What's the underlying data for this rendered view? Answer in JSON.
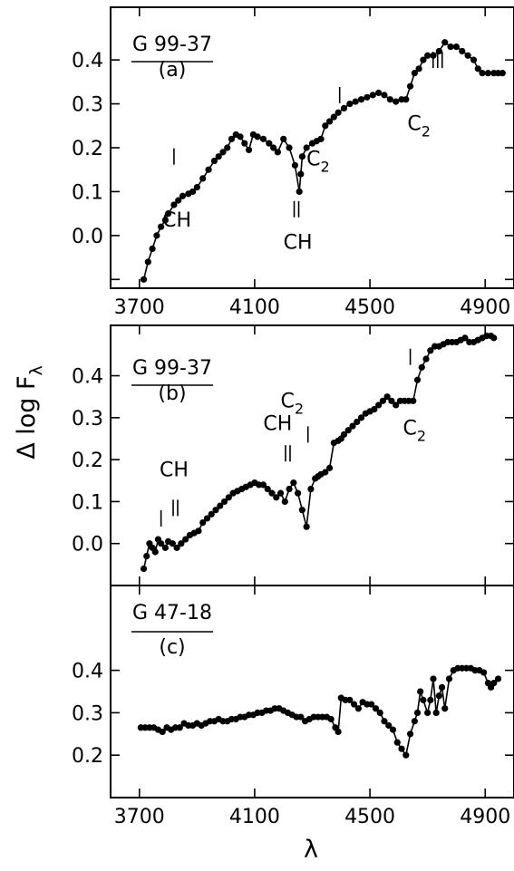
{
  "figure": {
    "ylabel": "Δ log F",
    "ylabel_sub": "λ",
    "xlabel": "λ",
    "colors": {
      "ink": "#000000",
      "background": "#ffffff"
    }
  },
  "chart_data": [
    {
      "type": "line",
      "panel": "a",
      "title_line1": "G 99-37",
      "title_line2": "(a)",
      "xlim": [
        3600,
        5000
      ],
      "ylim": [
        -0.12,
        0.52
      ],
      "xticks": [
        3700,
        4100,
        4500,
        4900
      ],
      "xtick_labels": [
        "3700",
        "4100",
        "4500",
        "4900"
      ],
      "yticks": [
        -0.1,
        0.0,
        0.1,
        0.2,
        0.3,
        0.4
      ],
      "ytick_labels": [
        "",
        "0.0",
        "0.1",
        "0.2",
        "0.3",
        "0.4"
      ],
      "grid": false,
      "series": [
        {
          "x": [
            3715,
            3730,
            3745,
            3760,
            3775,
            3790,
            3800,
            3820,
            3835,
            3850,
            3870,
            3885,
            3900,
            3920,
            3940,
            3960,
            3975,
            3990,
            4005,
            4020,
            4035,
            4050,
            4065,
            4080,
            4095,
            4110,
            4130,
            4150,
            4165,
            4180,
            4200,
            4220,
            4240,
            4255,
            4260,
            4265,
            4280,
            4300,
            4315,
            4330,
            4345,
            4360,
            4375,
            4390,
            4410,
            4430,
            4450,
            4470,
            4490,
            4510,
            4530,
            4550,
            4570,
            4590,
            4610,
            4625,
            4640,
            4655,
            4670,
            4685,
            4700,
            4720,
            4740,
            4760,
            4780,
            4800,
            4820,
            4840,
            4860,
            4875,
            4890,
            4910,
            4930,
            4945,
            4960
          ],
          "y": [
            -0.1,
            -0.06,
            -0.03,
            0.0,
            0.02,
            0.035,
            0.05,
            0.07,
            0.08,
            0.09,
            0.095,
            0.1,
            0.11,
            0.13,
            0.15,
            0.17,
            0.18,
            0.19,
            0.2,
            0.22,
            0.23,
            0.225,
            0.21,
            0.195,
            0.23,
            0.225,
            0.22,
            0.21,
            0.2,
            0.19,
            0.22,
            0.2,
            0.16,
            0.1,
            0.14,
            0.18,
            0.2,
            0.21,
            0.215,
            0.22,
            0.25,
            0.26,
            0.27,
            0.28,
            0.29,
            0.3,
            0.305,
            0.31,
            0.315,
            0.32,
            0.325,
            0.32,
            0.31,
            0.305,
            0.31,
            0.31,
            0.34,
            0.37,
            0.38,
            0.4,
            0.41,
            0.41,
            0.42,
            0.44,
            0.43,
            0.43,
            0.42,
            0.41,
            0.4,
            0.38,
            0.37,
            0.37,
            0.37,
            0.37,
            0.37
          ]
        }
      ],
      "annotations": [
        {
          "text": "CH",
          "x": 3830,
          "y": 0.02
        },
        {
          "text": "CH",
          "x": 4250,
          "y": -0.03
        },
        {
          "text": "C",
          "sub": "2",
          "x": 4320,
          "y": 0.16
        },
        {
          "text": "C",
          "sub": "2",
          "x": 4670,
          "y": 0.24
        }
      ],
      "markers": [
        {
          "x": 3820,
          "y": 0.18,
          "n": 1
        },
        {
          "x": 4245,
          "y": 0.06,
          "n": 2
        },
        {
          "x": 4395,
          "y": 0.32,
          "n": 1
        },
        {
          "x": 4735,
          "y": 0.4,
          "n": 3
        }
      ]
    },
    {
      "type": "line",
      "panel": "b",
      "title_line1": "G 99-37",
      "title_line2": "(b)",
      "xlim": [
        3600,
        5000
      ],
      "ylim": [
        -0.1,
        0.52
      ],
      "xticks": [
        3700,
        4100,
        4500,
        4900
      ],
      "xtick_labels": [],
      "yticks": [
        0.0,
        0.1,
        0.2,
        0.3,
        0.4
      ],
      "ytick_labels": [
        "0.0",
        "0.1",
        "0.2",
        "0.3",
        "0.4"
      ],
      "grid": false,
      "series": [
        {
          "x": [
            3715,
            3725,
            3735,
            3745,
            3755,
            3765,
            3775,
            3790,
            3800,
            3815,
            3830,
            3845,
            3860,
            3875,
            3890,
            3905,
            3920,
            3935,
            3950,
            3965,
            3980,
            3995,
            4010,
            4025,
            4040,
            4055,
            4070,
            4085,
            4100,
            4115,
            4130,
            4145,
            4160,
            4175,
            4190,
            4205,
            4220,
            4235,
            4250,
            4265,
            4280,
            4295,
            4310,
            4320,
            4330,
            4345,
            4360,
            4375,
            4390,
            4400,
            4410,
            4425,
            4440,
            4455,
            4470,
            4485,
            4500,
            4515,
            4530,
            4545,
            4560,
            4575,
            4590,
            4605,
            4620,
            4635,
            4650,
            4665,
            4680,
            4695,
            4710,
            4725,
            4740,
            4755,
            4770,
            4785,
            4800,
            4815,
            4830,
            4845,
            4860,
            4875,
            4890,
            4905,
            4920,
            4930
          ],
          "y": [
            -0.06,
            -0.03,
            0.0,
            -0.01,
            -0.02,
            0.01,
            0.0,
            -0.01,
            0.005,
            0.0,
            -0.01,
            0.0,
            0.01,
            0.02,
            0.025,
            0.03,
            0.05,
            0.06,
            0.07,
            0.08,
            0.09,
            0.1,
            0.11,
            0.12,
            0.125,
            0.13,
            0.135,
            0.14,
            0.145,
            0.14,
            0.14,
            0.13,
            0.12,
            0.11,
            0.12,
            0.1,
            0.13,
            0.145,
            0.12,
            0.08,
            0.04,
            0.13,
            0.155,
            0.16,
            0.165,
            0.17,
            0.18,
            0.24,
            0.245,
            0.25,
            0.26,
            0.27,
            0.28,
            0.29,
            0.3,
            0.31,
            0.315,
            0.32,
            0.33,
            0.34,
            0.35,
            0.34,
            0.33,
            0.34,
            0.34,
            0.34,
            0.34,
            0.39,
            0.42,
            0.44,
            0.46,
            0.47,
            0.47,
            0.475,
            0.48,
            0.48,
            0.48,
            0.485,
            0.49,
            0.48,
            0.48,
            0.485,
            0.49,
            0.495,
            0.495,
            0.49
          ]
        }
      ],
      "annotations": [
        {
          "text": "CH",
          "x": 3820,
          "y": 0.16
        },
        {
          "text": "CH",
          "x": 4180,
          "y": 0.27
        },
        {
          "text": "C",
          "sub": "2",
          "x": 4230,
          "y": 0.325
        },
        {
          "text": "C",
          "sub": "2",
          "x": 4655,
          "y": 0.26
        }
      ],
      "markers": [
        {
          "x": 3775,
          "y": 0.06,
          "n": 1
        },
        {
          "x": 3825,
          "y": 0.085,
          "n": 2
        },
        {
          "x": 4215,
          "y": 0.215,
          "n": 2
        },
        {
          "x": 4285,
          "y": 0.26,
          "n": 1
        },
        {
          "x": 4640,
          "y": 0.445,
          "n": 1
        }
      ]
    },
    {
      "type": "line",
      "panel": "c",
      "title_line1": "G 47-18",
      "title_line2": "(c)",
      "xlim": [
        3600,
        5000
      ],
      "ylim": [
        0.1,
        0.6
      ],
      "xticks": [
        3700,
        4100,
        4500,
        4900
      ],
      "xtick_labels": [
        "3700",
        "4100",
        "4500",
        "4900"
      ],
      "yticks": [
        0.2,
        0.3,
        0.4
      ],
      "ytick_labels": [
        "0.2",
        "0.3",
        "0.4"
      ],
      "grid": false,
      "series": [
        {
          "x": [
            3705,
            3720,
            3735,
            3750,
            3765,
            3780,
            3795,
            3810,
            3825,
            3840,
            3855,
            3870,
            3885,
            3900,
            3915,
            3930,
            3945,
            3960,
            3975,
            3990,
            4005,
            4020,
            4035,
            4050,
            4065,
            4080,
            4095,
            4110,
            4125,
            4140,
            4155,
            4170,
            4185,
            4200,
            4215,
            4230,
            4245,
            4260,
            4275,
            4290,
            4305,
            4320,
            4335,
            4350,
            4365,
            4380,
            4390,
            4400,
            4415,
            4430,
            4445,
            4460,
            4475,
            4490,
            4505,
            4520,
            4535,
            4550,
            4565,
            4580,
            4595,
            4610,
            4625,
            4640,
            4655,
            4665,
            4675,
            4685,
            4700,
            4710,
            4720,
            4730,
            4740,
            4750,
            4760,
            4775,
            4790,
            4805,
            4820,
            4835,
            4850,
            4865,
            4880,
            4895,
            4910,
            4920,
            4930,
            4945
          ],
          "y": [
            0.265,
            0.265,
            0.265,
            0.265,
            0.26,
            0.255,
            0.265,
            0.26,
            0.265,
            0.265,
            0.275,
            0.27,
            0.27,
            0.275,
            0.27,
            0.275,
            0.28,
            0.28,
            0.285,
            0.28,
            0.28,
            0.285,
            0.285,
            0.29,
            0.29,
            0.295,
            0.295,
            0.3,
            0.3,
            0.305,
            0.305,
            0.31,
            0.31,
            0.305,
            0.3,
            0.295,
            0.29,
            0.29,
            0.28,
            0.285,
            0.29,
            0.29,
            0.29,
            0.29,
            0.285,
            0.265,
            0.255,
            0.335,
            0.33,
            0.33,
            0.32,
            0.31,
            0.325,
            0.32,
            0.32,
            0.31,
            0.3,
            0.28,
            0.27,
            0.26,
            0.23,
            0.215,
            0.2,
            0.25,
            0.28,
            0.3,
            0.35,
            0.33,
            0.3,
            0.33,
            0.38,
            0.3,
            0.34,
            0.36,
            0.31,
            0.38,
            0.4,
            0.405,
            0.405,
            0.405,
            0.405,
            0.4,
            0.4,
            0.395,
            0.37,
            0.36,
            0.37,
            0.38
          ]
        }
      ],
      "annotations": [],
      "markers": []
    }
  ]
}
